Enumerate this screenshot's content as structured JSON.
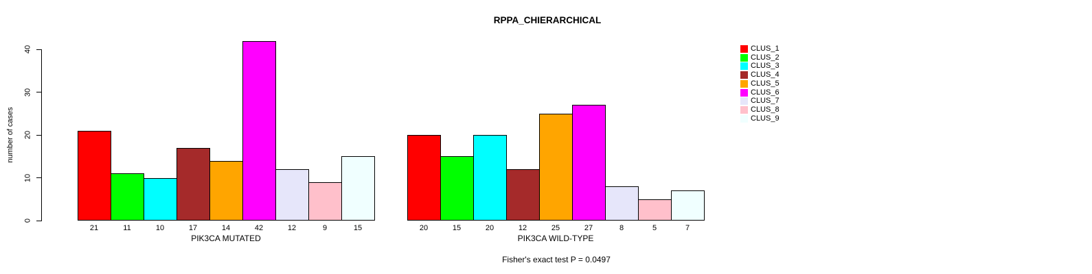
{
  "title": "RPPA_CHIERARCHICAL",
  "chart_data": {
    "type": "bar",
    "title": "RPPA_CHIERARCHICAL",
    "ylabel": "number of cases",
    "xlabel": "",
    "ylim": [
      0,
      44
    ],
    "yticks": [
      0,
      10,
      20,
      30,
      40
    ],
    "grid": false,
    "legend_position": "right",
    "annotation": "Fisher's exact test P = 0.0497",
    "legend": [
      {
        "label": "CLUS_1",
        "color": "#FF0000"
      },
      {
        "label": "CLUS_2",
        "color": "#00FF00"
      },
      {
        "label": "CLUS_3",
        "color": "#00FFFF"
      },
      {
        "label": "CLUS_4",
        "color": "#A52A2A"
      },
      {
        "label": "CLUS_5",
        "color": "#FFA500"
      },
      {
        "label": "CLUS_6",
        "color": "#FF00FF"
      },
      {
        "label": "CLUS_7",
        "color": "#E6E6FA"
      },
      {
        "label": "CLUS_8",
        "color": "#FFC0CB"
      },
      {
        "label": "CLUS_9",
        "color": "#F0FFFF"
      }
    ],
    "groups": [
      {
        "label": "PIK3CA MUTATED",
        "categories": [
          "CLUS_1",
          "CLUS_2",
          "CLUS_3",
          "CLUS_4",
          "CLUS_5",
          "CLUS_6",
          "CLUS_7",
          "CLUS_8",
          "CLUS_9"
        ],
        "values": [
          21,
          11,
          10,
          17,
          14,
          42,
          12,
          9,
          15
        ]
      },
      {
        "label": "PIK3CA WILD-TYPE",
        "categories": [
          "CLUS_1",
          "CLUS_2",
          "CLUS_3",
          "CLUS_4",
          "CLUS_5",
          "CLUS_6",
          "CLUS_7",
          "CLUS_8",
          "CLUS_9"
        ],
        "values": [
          20,
          15,
          20,
          12,
          25,
          27,
          8,
          5,
          7
        ]
      }
    ]
  }
}
